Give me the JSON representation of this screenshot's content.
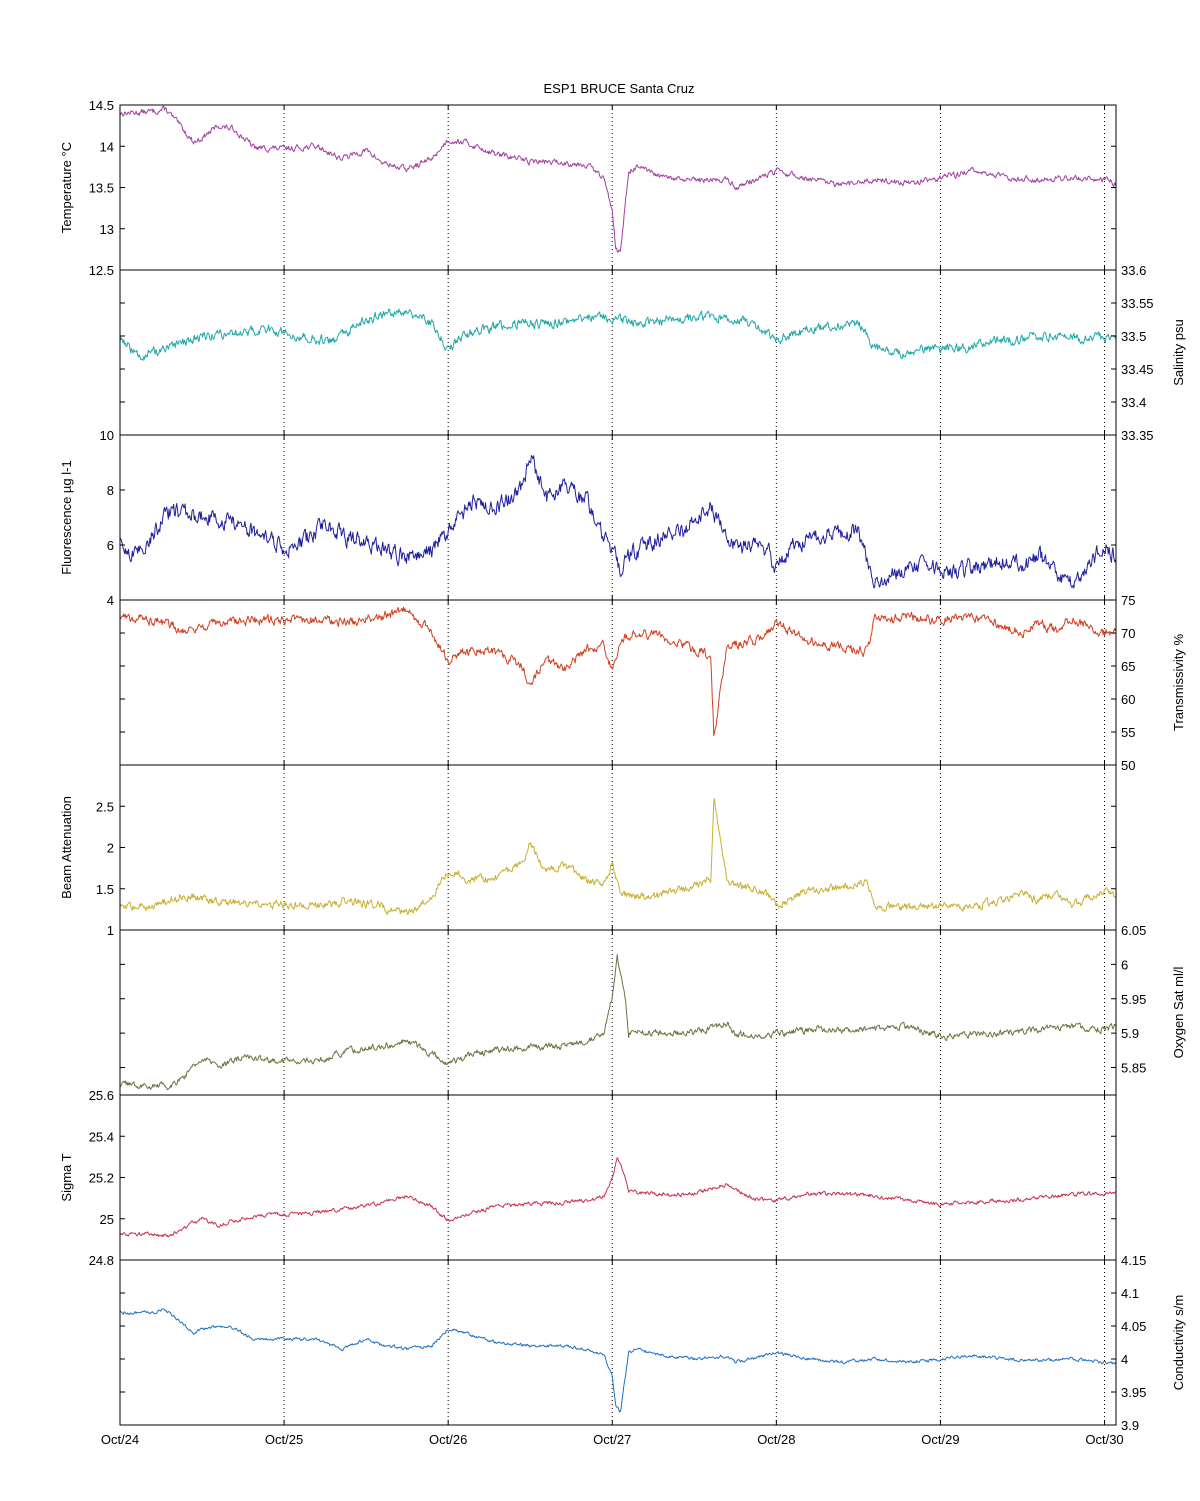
{
  "chart_data": {
    "title": "ESP1 BRUCE Santa Cruz",
    "type": "line",
    "x_ticks": [
      "Oct/24",
      "Oct/25",
      "Oct/26",
      "Oct/27",
      "Oct/28",
      "Oct/29",
      "Oct/30"
    ],
    "x_range": [
      "Oct/24 00:00",
      "Oct/30 01:00"
    ],
    "grid": "vertical dotted lines at day ticks",
    "panels": [
      {
        "id": "temperature",
        "ylabel": "Temperature °C",
        "axis_side": "left",
        "ylim": [
          12.5,
          14.5
        ],
        "ticks": [
          "12.5",
          "13",
          "13.5",
          "14",
          "14.5"
        ],
        "color": "#a040a0",
        "series": {
          "x_days": [
            0,
            0.2,
            0.28,
            0.45,
            0.5,
            0.6,
            0.7,
            0.82,
            1.0,
            1.2,
            1.35,
            1.5,
            1.6,
            1.75,
            1.9,
            2.0,
            2.1,
            2.3,
            2.5,
            2.7,
            2.85,
            2.95,
            3.0,
            3.02,
            3.05,
            3.1,
            3.15,
            3.3,
            3.5,
            3.7,
            3.75,
            3.85,
            4.0,
            4.2,
            4.4,
            4.6,
            4.8,
            5.0,
            5.2,
            5.4,
            5.6,
            5.8,
            6.0,
            6.07
          ],
          "values": [
            14.4,
            14.42,
            14.45,
            14.05,
            14.1,
            14.25,
            14.2,
            13.98,
            13.97,
            14.0,
            13.85,
            13.95,
            13.8,
            13.72,
            13.85,
            14.08,
            14.05,
            13.9,
            13.82,
            13.8,
            13.78,
            13.6,
            13.25,
            12.8,
            12.7,
            13.7,
            13.75,
            13.62,
            13.58,
            13.6,
            13.5,
            13.58,
            13.7,
            13.6,
            13.52,
            13.6,
            13.55,
            13.62,
            13.7,
            13.62,
            13.6,
            13.62,
            13.6,
            13.55
          ],
          "noise": 0.03
        }
      },
      {
        "id": "salinity",
        "ylabel": "Salinity psu",
        "axis_side": "right",
        "ylim": [
          33.35,
          33.6
        ],
        "ticks": [
          "33.35",
          "33.4",
          "33.45",
          "33.5",
          "33.55",
          "33.6"
        ],
        "color": "#20a8a8",
        "series": {
          "x_days": [
            0,
            0.1,
            0.3,
            0.5,
            0.7,
            0.9,
            1.1,
            1.3,
            1.5,
            1.7,
            1.75,
            1.9,
            2.0,
            2.1,
            2.3,
            2.5,
            2.7,
            2.9,
            3.05,
            3.2,
            3.4,
            3.6,
            3.8,
            3.9,
            4.0,
            4.2,
            4.5,
            4.55,
            4.6,
            4.75,
            4.9,
            5.1,
            5.3,
            5.5,
            5.7,
            5.9,
            6.07
          ],
          "values": [
            33.5,
            33.47,
            33.48,
            33.5,
            33.505,
            33.51,
            33.5,
            33.49,
            33.525,
            33.54,
            33.535,
            33.52,
            33.48,
            33.5,
            33.515,
            33.52,
            33.52,
            33.53,
            33.525,
            33.52,
            33.525,
            33.53,
            33.525,
            33.51,
            33.495,
            33.51,
            33.52,
            33.5,
            33.48,
            33.475,
            33.48,
            33.48,
            33.49,
            33.495,
            33.5,
            33.495,
            33.5
          ],
          "noise": 0.006
        }
      },
      {
        "id": "fluorescence",
        "ylabel": "Fluorescence µg l-1",
        "axis_side": "left",
        "ylim": [
          4,
          10
        ],
        "ticks": [
          "4",
          "6",
          "8",
          "10"
        ],
        "color": "#2020a0",
        "series": {
          "x_days": [
            0,
            0.1,
            0.3,
            0.55,
            0.7,
            0.9,
            1.0,
            1.1,
            1.25,
            1.4,
            1.55,
            1.7,
            1.9,
            2.0,
            2.15,
            2.3,
            2.45,
            2.5,
            2.6,
            2.7,
            2.85,
            2.95,
            3.05,
            3.1,
            3.3,
            3.45,
            3.6,
            3.7,
            3.8,
            3.95,
            4.0,
            4.1,
            4.3,
            4.5,
            4.55,
            4.6,
            4.7,
            4.9,
            5.1,
            5.3,
            5.45,
            5.5,
            5.6,
            5.7,
            5.8,
            5.9,
            6.0,
            6.07
          ],
          "values": [
            6.0,
            5.6,
            7.2,
            7.0,
            6.8,
            6.2,
            5.9,
            6.0,
            6.8,
            6.2,
            6.0,
            5.6,
            5.8,
            6.5,
            7.6,
            7.4,
            8.0,
            9.3,
            7.6,
            8.2,
            7.6,
            6.2,
            5.2,
            5.6,
            6.3,
            6.6,
            7.4,
            6.2,
            6.0,
            5.8,
            5.1,
            6.0,
            6.4,
            6.5,
            5.5,
            4.6,
            5.0,
            5.2,
            5.0,
            5.3,
            5.6,
            5.2,
            5.6,
            5.0,
            4.6,
            5.2,
            6.0,
            5.6
          ],
          "noise": 0.25
        }
      },
      {
        "id": "transmissivity",
        "ylabel": "Transmissivity %",
        "axis_side": "right",
        "ylim": [
          50,
          75
        ],
        "ticks": [
          "50",
          "55",
          "60",
          "65",
          "70",
          "75"
        ],
        "color": "#d04020",
        "series": {
          "x_days": [
            0,
            0.2,
            0.4,
            0.6,
            0.8,
            1.0,
            1.2,
            1.4,
            1.6,
            1.75,
            1.9,
            2.0,
            2.15,
            2.3,
            2.45,
            2.5,
            2.6,
            2.7,
            2.85,
            2.95,
            3.0,
            3.05,
            3.15,
            3.3,
            3.5,
            3.6,
            3.62,
            3.7,
            3.8,
            3.9,
            4.0,
            4.2,
            4.4,
            4.55,
            4.6,
            4.8,
            5.0,
            5.2,
            5.4,
            5.5,
            5.6,
            5.7,
            5.8,
            5.9,
            6.0,
            6.07
          ],
          "values": [
            72.5,
            72.0,
            70.5,
            71.5,
            72.0,
            72.0,
            72.0,
            71.5,
            72.5,
            73.5,
            70.0,
            66.0,
            67.5,
            67.0,
            65.0,
            62.0,
            66.0,
            64.5,
            67.5,
            68.0,
            64.5,
            69.0,
            70.0,
            69.5,
            67.5,
            66.5,
            54.0,
            68.0,
            68.5,
            69.0,
            71.5,
            68.5,
            68.0,
            67.0,
            72.0,
            72.5,
            72.0,
            72.5,
            71.0,
            70.0,
            71.5,
            70.5,
            72.0,
            71.0,
            70.0,
            70.5
          ],
          "noise": 0.6
        }
      },
      {
        "id": "beam_attenuation",
        "ylabel": "Beam Attenuation",
        "axis_side": "left",
        "ylim": [
          1,
          3
        ],
        "ticks": [
          "1",
          "1.5",
          "2",
          "2.5"
        ],
        "color": "#c8b030",
        "series": {
          "x_days": [
            0,
            0.2,
            0.4,
            0.6,
            0.8,
            1.0,
            1.2,
            1.4,
            1.6,
            1.75,
            1.9,
            2.0,
            2.15,
            2.3,
            2.45,
            2.5,
            2.6,
            2.7,
            2.85,
            2.95,
            3.0,
            3.05,
            3.15,
            3.3,
            3.5,
            3.6,
            3.62,
            3.7,
            3.8,
            3.9,
            4.0,
            4.2,
            4.4,
            4.55,
            4.6,
            4.8,
            5.0,
            5.2,
            5.4,
            5.5,
            5.6,
            5.7,
            5.8,
            5.9,
            6.0,
            6.07
          ],
          "values": [
            1.26,
            1.3,
            1.42,
            1.35,
            1.3,
            1.3,
            1.3,
            1.35,
            1.28,
            1.2,
            1.4,
            1.72,
            1.6,
            1.65,
            1.8,
            2.05,
            1.7,
            1.8,
            1.6,
            1.55,
            1.8,
            1.45,
            1.4,
            1.42,
            1.55,
            1.62,
            2.6,
            1.58,
            1.52,
            1.5,
            1.3,
            1.5,
            1.5,
            1.58,
            1.3,
            1.27,
            1.3,
            1.27,
            1.38,
            1.45,
            1.35,
            1.45,
            1.3,
            1.38,
            1.45,
            1.42
          ],
          "noise": 0.04
        }
      },
      {
        "id": "oxygen",
        "ylabel": "Oxygen Sat ml/l",
        "axis_side": "right",
        "ylim": [
          5.81,
          6.05
        ],
        "ticks": [
          "5.85",
          "5.9",
          "5.95",
          "6",
          "6.05"
        ],
        "color": "#707040",
        "series": {
          "x_days": [
            0,
            0.3,
            0.4,
            0.5,
            0.6,
            0.75,
            0.9,
            1.0,
            1.2,
            1.4,
            1.6,
            1.75,
            1.9,
            2.0,
            2.15,
            2.3,
            2.5,
            2.7,
            2.85,
            2.95,
            3.0,
            3.03,
            3.08,
            3.1,
            3.3,
            3.5,
            3.7,
            3.75,
            3.85,
            4.0,
            4.2,
            4.4,
            4.6,
            4.8,
            5.0,
            5.2,
            5.4,
            5.6,
            5.8,
            6.0,
            6.07
          ],
          "values": [
            5.825,
            5.823,
            5.84,
            5.865,
            5.85,
            5.865,
            5.86,
            5.86,
            5.86,
            5.875,
            5.88,
            5.89,
            5.87,
            5.855,
            5.87,
            5.875,
            5.88,
            5.88,
            5.89,
            5.9,
            5.955,
            6.01,
            5.95,
            5.9,
            5.9,
            5.9,
            5.915,
            5.9,
            5.895,
            5.9,
            5.905,
            5.905,
            5.905,
            5.91,
            5.895,
            5.9,
            5.9,
            5.905,
            5.91,
            5.905,
            5.91
          ],
          "noise": 0.004
        }
      },
      {
        "id": "sigma_t",
        "ylabel": "Sigma T",
        "axis_side": "left",
        "ylim": [
          24.8,
          25.6
        ],
        "ticks": [
          "24.8",
          "25",
          "25.2",
          "25.4",
          "25.6"
        ],
        "color": "#c83050",
        "series": {
          "x_days": [
            0,
            0.3,
            0.4,
            0.5,
            0.6,
            0.75,
            0.9,
            1.0,
            1.2,
            1.4,
            1.6,
            1.75,
            1.9,
            2.0,
            2.15,
            2.3,
            2.5,
            2.7,
            2.85,
            2.95,
            3.0,
            3.03,
            3.08,
            3.1,
            3.3,
            3.5,
            3.7,
            3.75,
            3.85,
            4.0,
            4.2,
            4.4,
            4.6,
            4.8,
            5.0,
            5.2,
            5.4,
            5.6,
            5.8,
            6.0,
            6.07
          ],
          "values": [
            24.93,
            24.92,
            24.96,
            25.0,
            24.97,
            25.0,
            25.02,
            25.02,
            25.03,
            25.05,
            25.08,
            25.11,
            25.06,
            24.99,
            25.03,
            25.06,
            25.07,
            25.08,
            25.09,
            25.11,
            25.2,
            25.3,
            25.2,
            25.13,
            25.12,
            25.12,
            25.17,
            25.14,
            25.1,
            25.09,
            25.12,
            25.12,
            25.11,
            25.09,
            25.07,
            25.08,
            25.09,
            25.1,
            25.12,
            25.12,
            25.13
          ],
          "noise": 0.008
        }
      },
      {
        "id": "conductivity",
        "ylabel": "Conductivity s/m",
        "axis_side": "right",
        "ylim": [
          3.9,
          4.15
        ],
        "ticks": [
          "3.9",
          "3.95",
          "4",
          "4.05",
          "4.1",
          "4.15"
        ],
        "color": "#2070c0",
        "series": {
          "x_days": [
            0,
            0.2,
            0.28,
            0.45,
            0.5,
            0.6,
            0.7,
            0.82,
            1.0,
            1.2,
            1.35,
            1.5,
            1.6,
            1.75,
            1.9,
            2.0,
            2.1,
            2.3,
            2.5,
            2.7,
            2.85,
            2.95,
            3.0,
            3.02,
            3.05,
            3.1,
            3.15,
            3.3,
            3.5,
            3.7,
            3.75,
            3.85,
            4.0,
            4.2,
            4.4,
            4.6,
            4.8,
            5.0,
            5.2,
            5.4,
            5.6,
            5.8,
            6.0,
            6.07
          ],
          "values": [
            4.07,
            4.07,
            4.075,
            4.04,
            4.045,
            4.05,
            4.045,
            4.03,
            4.03,
            4.03,
            4.015,
            4.03,
            4.02,
            4.015,
            4.02,
            4.045,
            4.04,
            4.025,
            4.02,
            4.02,
            4.015,
            4.005,
            3.975,
            3.93,
            3.92,
            4.01,
            4.015,
            4.005,
            4.0,
            4.005,
            3.995,
            4.0,
            4.01,
            4.0,
            3.995,
            4.0,
            3.995,
            4.0,
            4.005,
            4.0,
            3.998,
            4.0,
            3.995,
            3.993
          ],
          "noise": 0.002
        }
      }
    ]
  }
}
